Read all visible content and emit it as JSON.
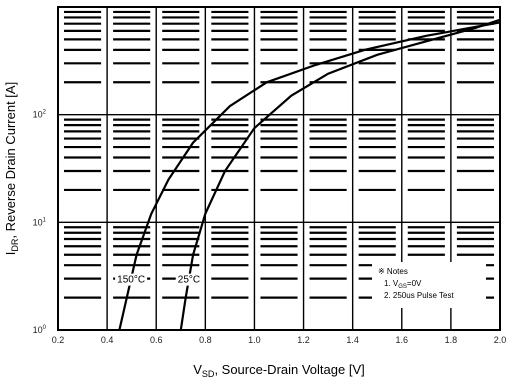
{
  "chart_data": {
    "type": "line",
    "xlabel": {
      "main": "V",
      "sub": "SD",
      "rest": ", Source-Drain Voltage [V]"
    },
    "ylabel": {
      "main": "I",
      "sub": "DR",
      "rest": ", Reverse Drain Current [A]"
    },
    "xlim": [
      0.2,
      2.0
    ],
    "ylim": [
      1,
      1000
    ],
    "y_scale": "log",
    "grid": true,
    "x_ticks": [
      "0.2",
      "0.4",
      "0.6",
      "0.8",
      "1.0",
      "1.2",
      "1.4",
      "1.6",
      "1.8",
      "2.0"
    ],
    "y_ticks": [
      {
        "value": 1,
        "base": "10",
        "exp": "0"
      },
      {
        "value": 10,
        "base": "10",
        "exp": "1"
      },
      {
        "value": 100,
        "base": "10",
        "exp": "2"
      }
    ],
    "series": [
      {
        "name": "150°C",
        "x": [
          0.45,
          0.48,
          0.52,
          0.58,
          0.65,
          0.75,
          0.9,
          1.05,
          1.25,
          1.45,
          1.7,
          2.0
        ],
        "y": [
          1,
          2,
          5,
          12,
          25,
          55,
          120,
          200,
          290,
          400,
          540,
          720
        ]
      },
      {
        "name": "25°C",
        "x": [
          0.7,
          0.72,
          0.75,
          0.8,
          0.88,
          1.0,
          1.15,
          1.3,
          1.5,
          1.7,
          1.9,
          2.0
        ],
        "y": [
          1,
          2,
          5,
          12,
          30,
          75,
          150,
          240,
          360,
          480,
          640,
          760
        ]
      }
    ],
    "curve_labels": [
      {
        "text": "150°C",
        "series": "150°C"
      },
      {
        "text": "25°C",
        "series": "25°C"
      }
    ],
    "notes": {
      "title": "※ Notes",
      "line1_prefix": "1. V",
      "line1_sub": "GS",
      "line1_rest": "=0V",
      "line2": "2. 250us Pulse Test"
    }
  }
}
